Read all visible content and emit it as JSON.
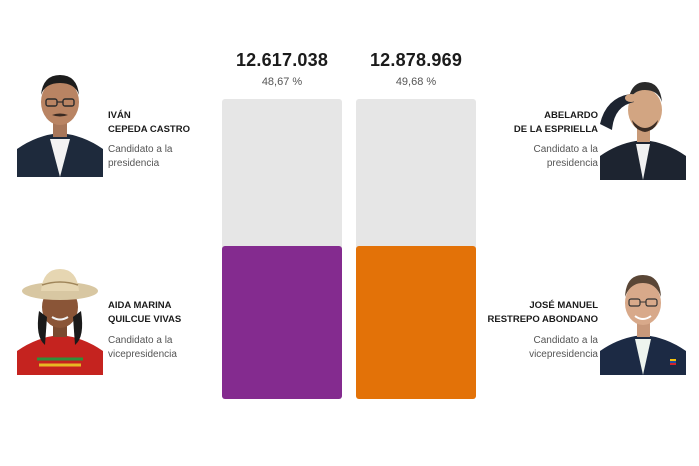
{
  "results": {
    "left": {
      "votes": "12.617.038",
      "percent": "48,67 %",
      "fill_fraction": 0.51,
      "color": "#842b8f"
    },
    "right": {
      "votes": "12.878.969",
      "percent": "49,68 %",
      "fill_fraction": 0.51,
      "color": "#e37208"
    }
  },
  "candidates": {
    "president_left": {
      "name_line1": "IVÁN",
      "name_line2": "CEPEDA CASTRO",
      "role_line1": "Candidato a la",
      "role_line2": "presidencia"
    },
    "vice_left": {
      "name_line1": "AIDA MARINA",
      "name_line2": "QUILCUE VIVAS",
      "role_line1": "Candidato a la",
      "role_line2": "vicepresidencia"
    },
    "president_right": {
      "name_line1": "ABELARDO",
      "name_line2": "DE LA ESPRIELLA",
      "role_line1": "Candidato a la",
      "role_line2": "presidencia"
    },
    "vice_right": {
      "name_line1": "JOSÉ MANUEL",
      "name_line2": "RESTREPO ABONDANO",
      "role_line1": "Candidato a la",
      "role_line2": "vicepresidencia"
    }
  }
}
